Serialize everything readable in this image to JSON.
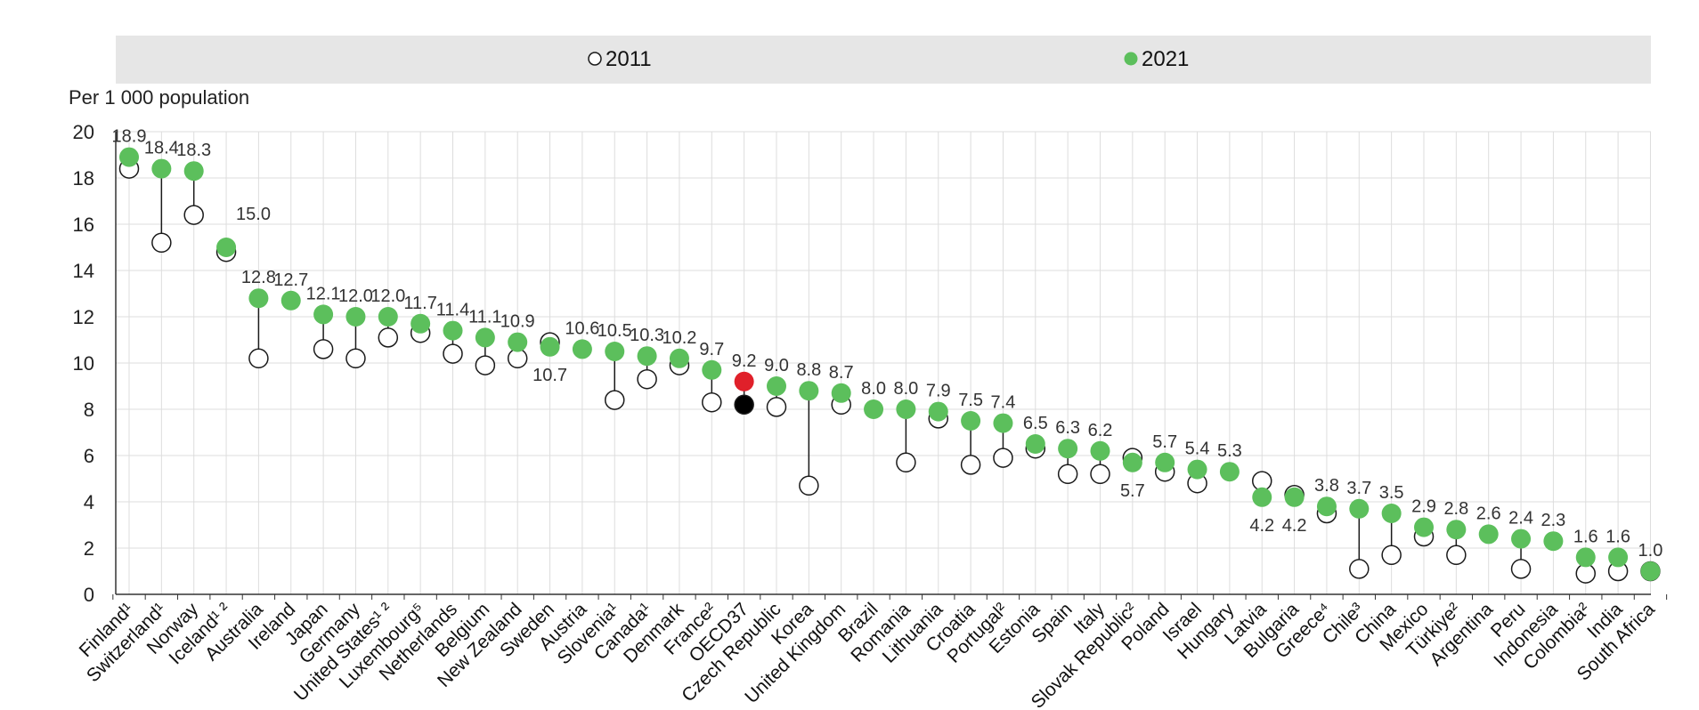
{
  "chart_data": {
    "type": "scatter",
    "ylabel": "Per 1 000 population",
    "ylim": [
      0,
      20
    ],
    "yticks": [
      "0",
      "2",
      "4",
      "6",
      "8",
      "10",
      "12",
      "14",
      "16",
      "18",
      "20"
    ],
    "grid": true,
    "legend_position": "top",
    "colors": {
      "y2011_fill": "#ffffff",
      "y2011_stroke": "#1a1a1a",
      "y2021": "#5cbf5c",
      "highlight2021": "#e0202a",
      "highlight2011": "#000000",
      "band": "#e6e6e6",
      "grid": "#dddddd",
      "plot_bg": "#ffffff"
    },
    "series": [
      {
        "name": "2011"
      },
      {
        "name": "2021"
      }
    ],
    "categories": [
      "Finland¹",
      "Switzerland¹",
      "Norway",
      "Iceland¹ ²",
      "Australia",
      "Ireland",
      "Japan",
      "Germany",
      "United States¹ ²",
      "Luxembourg⁵",
      "Netherlands",
      "Belgium",
      "New Zealand",
      "Sweden",
      "Austria",
      "Slovenia¹",
      "Canada¹",
      "Denmark",
      "France²",
      "OECD37",
      "Czech Republic",
      "Korea",
      "United Kingdom",
      "Brazil",
      "Romania",
      "Lithuania",
      "Croatia",
      "Portugal²",
      "Estonia",
      "Spain",
      "Italy",
      "Slovak Republic²",
      "Poland",
      "Israel",
      "Hungary",
      "Latvia",
      "Bulgaria",
      "Greece⁴",
      "Chile³",
      "China",
      "Mexico",
      "Türkiye²",
      "Argentina",
      "Peru",
      "Indonesia",
      "Colombia²",
      "India",
      "South Africa"
    ],
    "values_2011": [
      18.4,
      15.2,
      16.4,
      14.8,
      10.2,
      null,
      10.6,
      10.2,
      11.1,
      11.3,
      10.4,
      9.9,
      10.2,
      10.9,
      null,
      8.4,
      9.3,
      9.9,
      8.3,
      8.2,
      8.1,
      4.7,
      8.2,
      null,
      5.7,
      7.6,
      5.6,
      5.9,
      6.3,
      5.2,
      5.2,
      5.9,
      5.3,
      4.8,
      null,
      4.9,
      4.3,
      3.5,
      1.1,
      1.7,
      2.5,
      1.7,
      null,
      1.1,
      null,
      0.9,
      1.0,
      1.0
    ],
    "values_2021": [
      18.9,
      18.4,
      18.3,
      15.0,
      12.8,
      12.7,
      12.1,
      12.0,
      12.0,
      11.7,
      11.4,
      11.1,
      10.9,
      10.7,
      10.6,
      10.5,
      10.3,
      10.2,
      9.7,
      9.2,
      9.0,
      8.8,
      8.7,
      8.0,
      8.0,
      7.9,
      7.5,
      7.4,
      6.5,
      6.3,
      6.2,
      5.7,
      5.7,
      5.4,
      5.3,
      4.2,
      4.2,
      3.8,
      3.7,
      3.5,
      2.9,
      2.8,
      2.6,
      2.4,
      2.3,
      1.6,
      1.6,
      1.0
    ],
    "labels_2021": [
      "18.9",
      "18.4",
      "18.3",
      "15.0",
      "12.8",
      "12.7",
      "12.1",
      "12.0",
      "12.0",
      "11.7",
      "11.4",
      "11.1",
      "10.9",
      "10.7",
      "10.6",
      "10.5",
      "10.3",
      "10.2",
      "9.7",
      "9.2",
      "9.0",
      "8.8",
      "8.7",
      "8.0",
      "8.0",
      "7.9",
      "7.5",
      "7.4",
      "6.5",
      "6.3",
      "6.2",
      "5.7",
      "5.7",
      "5.4",
      "5.3",
      "4.2",
      "4.2",
      "3.8",
      "3.7",
      "3.5",
      "2.9",
      "2.8",
      "2.6",
      "2.4",
      "2.3",
      "1.6",
      "1.6",
      "1.0"
    ],
    "label_below": [
      false,
      false,
      false,
      false,
      false,
      false,
      false,
      false,
      false,
      false,
      false,
      false,
      false,
      true,
      false,
      false,
      false,
      false,
      false,
      false,
      false,
      false,
      false,
      false,
      false,
      false,
      false,
      false,
      false,
      false,
      false,
      true,
      false,
      false,
      false,
      true,
      true,
      false,
      false,
      false,
      false,
      false,
      false,
      false,
      false,
      false,
      false,
      false
    ],
    "highlight_index": 19
  }
}
